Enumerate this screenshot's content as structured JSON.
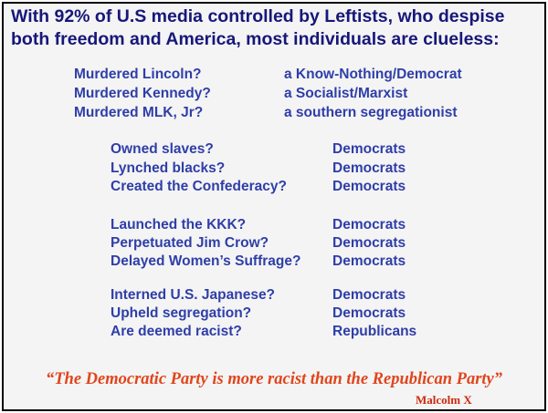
{
  "headline": {
    "line1": "With 92% of U.S media controlled by Leftists, who despise",
    "line2": "both freedom and America, most individuals are clueless:"
  },
  "group1": [
    {
      "q": "Murdered Lincoln?",
      "a": "a Know-Nothing/Democrat"
    },
    {
      "q": "Murdered Kennedy?",
      "a": "a Socialist/Marxist"
    },
    {
      "q": "Murdered MLK, Jr?",
      "a": "a southern segregationist"
    }
  ],
  "group2": [
    {
      "q": "Owned slaves?",
      "a": "Democrats"
    },
    {
      "q": "Lynched blacks?",
      "a": "Democrats"
    },
    {
      "q": "Created the Confederacy?",
      "a": "Democrats"
    }
  ],
  "group3": [
    {
      "q": "Launched the KKK?",
      "a": "Democrats"
    },
    {
      "q": "Perpetuated Jim Crow?",
      "a": "Democrats"
    },
    {
      "q": "Delayed Women’s Suffrage?",
      "a": "Democrats"
    }
  ],
  "group4": [
    {
      "q": "Interned U.S. Japanese?",
      "a": "Democrats"
    },
    {
      "q": "Upheld segregation?",
      "a": "Democrats"
    },
    {
      "q": "Are deemed racist?",
      "a": "Republicans"
    }
  ],
  "quote": "“The Democratic Party is more racist than the Republican Party”",
  "author": "Malcolm X",
  "colors": {
    "headline": "#17177a",
    "body": "#2f3ea8",
    "quote": "#e0451c"
  }
}
